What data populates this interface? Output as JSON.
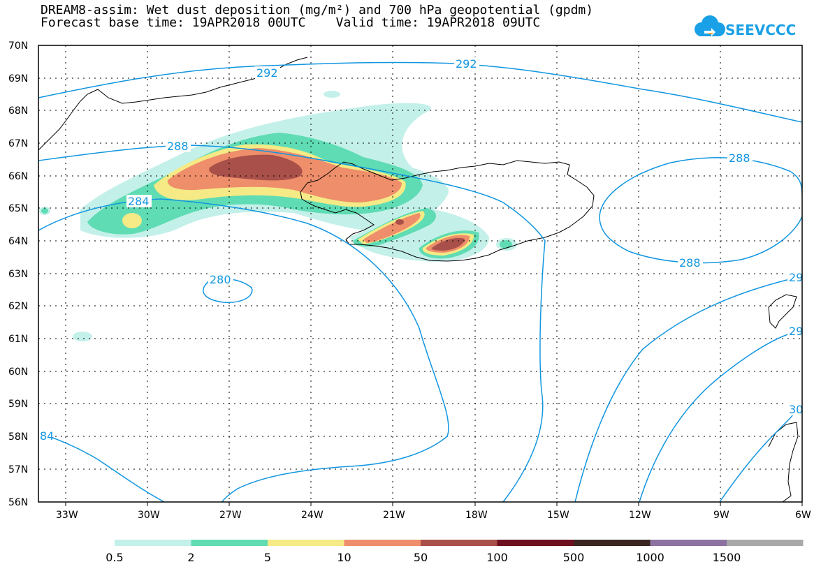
{
  "title": {
    "line1": "DREAM8-assim: Wet dust deposition (mg/m²) and 700 hPa geopotential (gpdm)",
    "line2": "Forecast base time: 19APR2018 00UTC    Valid time: 19APR2018 09UTC"
  },
  "logo": {
    "text": "SEEVCCC",
    "icon": "cloud-logo-icon",
    "color": "#1aa0e6"
  },
  "map": {
    "lon_range": [
      -34,
      -6
    ],
    "lat_range": [
      56,
      70
    ],
    "lat_ticks": [
      "70N",
      "69N",
      "68N",
      "67N",
      "66N",
      "65N",
      "64N",
      "63N",
      "62N",
      "61N",
      "60N",
      "59N",
      "58N",
      "57N",
      "56N"
    ],
    "lon_ticks": [
      "33W",
      "30W",
      "27W",
      "24W",
      "21W",
      "18W",
      "15W",
      "12W",
      "9W",
      "6W"
    ],
    "grid": "dotted"
  },
  "contours": {
    "color": "#1196e0",
    "labels": [
      "292",
      "292",
      "288",
      "288",
      "288",
      "284",
      "280",
      "29",
      "29",
      "30",
      "84"
    ]
  },
  "colorbar": {
    "colors": [
      "#c4f0ea",
      "#5fdcb3",
      "#f5ea86",
      "#ee8e6a",
      "#a9504a",
      "#6e0f1f",
      "#3a2620",
      "#8d72a1",
      "#a8a8a8"
    ],
    "labels": [
      "0.5",
      "2",
      "5",
      "10",
      "50",
      "100",
      "500",
      "1000",
      "1500"
    ]
  }
}
